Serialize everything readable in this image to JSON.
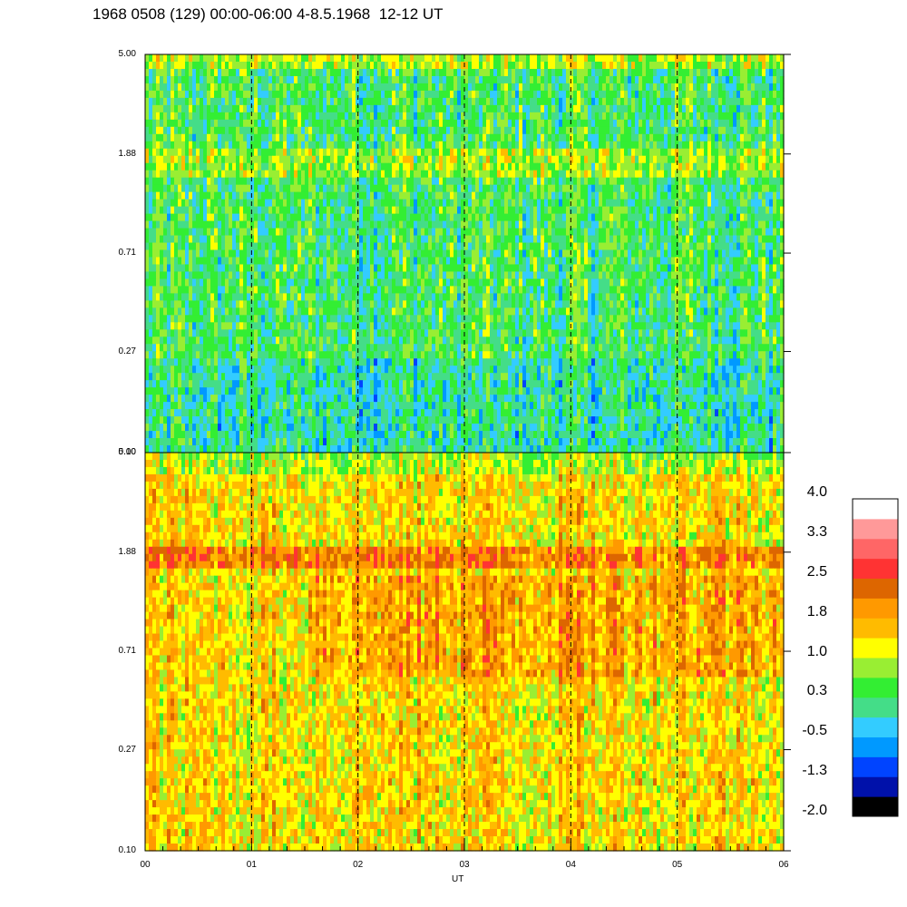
{
  "title": "1968 0508 (129) 00:00-06:00 4-8.5.1968  12-12 UT",
  "chart_data": {
    "type": "heatmap",
    "title": "1968 0508 (129) 00:00-06:00 4-8.5.1968  12-12 UT",
    "xlabel": "UT",
    "ylabel": "",
    "x_ticks": [
      "00",
      "01",
      "02",
      "03",
      "04",
      "05",
      "06"
    ],
    "xlim": [
      0,
      6
    ],
    "y_scale": "log",
    "panels": [
      {
        "name": "upper",
        "ylim": [
          0.1,
          5.0
        ],
        "y_ticks": [
          "5.00",
          "1.88",
          "0.71",
          "0.27",
          "0.10"
        ],
        "description_values": {
          "dominant_level": 0.3,
          "min_level": -1.3,
          "max_level": 1.8
        }
      },
      {
        "name": "lower",
        "ylim": [
          0.1,
          5.0
        ],
        "y_ticks": [
          "5.00",
          "1.88",
          "0.71",
          "0.27",
          "0.10"
        ],
        "description_values": {
          "dominant_level": 1.4,
          "min_level": 0.3,
          "max_level": 2.5
        }
      }
    ],
    "colorbar": {
      "labels": [
        "4.0",
        "3.3",
        "2.5",
        "1.8",
        "1.0",
        "0.3",
        "-0.5",
        "-1.3",
        "-2.0"
      ],
      "range": [
        -2.0,
        4.0
      ],
      "colors": [
        "#000000",
        "#0011aa",
        "#0044ff",
        "#0099ff",
        "#33ccff",
        "#44dd88",
        "#33ee33",
        "#99ee33",
        "#ffff00",
        "#ffbb00",
        "#ff9900",
        "#dd6600",
        "#ff3333",
        "#ff6666",
        "#ff9999",
        "#ffffff"
      ]
    },
    "vertical_dashed_lines_at": [
      1,
      2,
      3,
      4,
      5
    ],
    "grid": false
  }
}
